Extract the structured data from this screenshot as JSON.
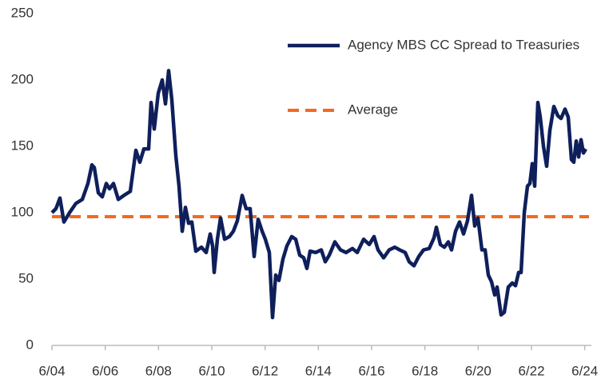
{
  "chart_data": {
    "type": "line",
    "x": [
      2004.5,
      2004.65,
      2004.8,
      2004.95,
      2005.16,
      2005.4,
      2005.64,
      2005.85,
      2006.0,
      2006.09,
      2006.24,
      2006.39,
      2006.54,
      2006.66,
      2006.81,
      2006.99,
      2007.2,
      2007.44,
      2007.65,
      2007.8,
      2007.95,
      2008.13,
      2008.22,
      2008.34,
      2008.49,
      2008.64,
      2008.76,
      2008.88,
      2009.0,
      2009.15,
      2009.27,
      2009.39,
      2009.51,
      2009.63,
      2009.75,
      2009.9,
      2010.11,
      2010.29,
      2010.44,
      2010.53,
      2010.59,
      2010.71,
      2010.83,
      2010.98,
      2011.16,
      2011.31,
      2011.46,
      2011.64,
      2011.79,
      2011.94,
      2012.09,
      2012.24,
      2012.39,
      2012.51,
      2012.66,
      2012.78,
      2012.9,
      2013.02,
      2013.17,
      2013.32,
      2013.5,
      2013.65,
      2013.8,
      2013.95,
      2014.07,
      2014.19,
      2014.4,
      2014.61,
      2014.76,
      2014.91,
      2015.12,
      2015.33,
      2015.54,
      2015.78,
      2015.96,
      2016.2,
      2016.41,
      2016.59,
      2016.74,
      2016.95,
      2017.16,
      2017.37,
      2017.55,
      2017.76,
      2017.91,
      2018.09,
      2018.27,
      2018.45,
      2018.66,
      2018.84,
      2018.93,
      2019.08,
      2019.23,
      2019.38,
      2019.5,
      2019.65,
      2019.8,
      2019.95,
      2020.1,
      2020.25,
      2020.37,
      2020.49,
      2020.64,
      2020.76,
      2020.88,
      2021.0,
      2021.12,
      2021.21,
      2021.36,
      2021.48,
      2021.63,
      2021.78,
      2021.9,
      2022.02,
      2022.11,
      2022.23,
      2022.35,
      2022.44,
      2022.53,
      2022.62,
      2022.74,
      2022.83,
      2022.95,
      2023.07,
      2023.19,
      2023.34,
      2023.49,
      2023.61,
      2023.76,
      2023.88,
      2024.0,
      2024.09,
      2024.18,
      2024.27,
      2024.36,
      2024.45,
      2024.54
    ],
    "series": [
      {
        "name": "Agency MBS CC Spread to Treasuries",
        "color": "#0e1f5b",
        "values": [
          100,
          103,
          111,
          93,
          100,
          107,
          110,
          122,
          136,
          134,
          115,
          112,
          122,
          118,
          122,
          110,
          113,
          116,
          147,
          138,
          148,
          148,
          183,
          163,
          190,
          200,
          182,
          207,
          185,
          143,
          120,
          86,
          104,
          92,
          93,
          71,
          74,
          70,
          84,
          75,
          55,
          80,
          96,
          80,
          82,
          86,
          94,
          113,
          103,
          103,
          67,
          95,
          86,
          80,
          70,
          21,
          53,
          49,
          65,
          75,
          82,
          80,
          68,
          66,
          58,
          71,
          70,
          72,
          63,
          68,
          78,
          72,
          70,
          73,
          70,
          80,
          76,
          82,
          72,
          66,
          72,
          74,
          72,
          70,
          63,
          60,
          67,
          72,
          73,
          81,
          89,
          76,
          74,
          78,
          72,
          86,
          93,
          84,
          94,
          113,
          90,
          96,
          72,
          72,
          53,
          48,
          38,
          44,
          23,
          25,
          44,
          47,
          45,
          55,
          55,
          100,
          120,
          122,
          137,
          120,
          183,
          172,
          150,
          135,
          162,
          180,
          173,
          171,
          178,
          172,
          140,
          138,
          154,
          142,
          155,
          145,
          148
        ]
      }
    ],
    "reference_lines": [
      {
        "name": "Average",
        "value": 97,
        "color": "#f26a21",
        "dashed": true
      }
    ],
    "xlim": [
      2004.5,
      2024.54
    ],
    "xticks": [
      {
        "value": 2004.5,
        "label": "6/04"
      },
      {
        "value": 2006.5,
        "label": "6/06"
      },
      {
        "value": 2008.5,
        "label": "6/08"
      },
      {
        "value": 2010.5,
        "label": "6/10"
      },
      {
        "value": 2012.5,
        "label": "6/12"
      },
      {
        "value": 2014.5,
        "label": "6/14"
      },
      {
        "value": 2016.5,
        "label": "6/16"
      },
      {
        "value": 2018.5,
        "label": "6/18"
      },
      {
        "value": 2020.5,
        "label": "6/20"
      },
      {
        "value": 2022.5,
        "label": "6/22"
      },
      {
        "value": 2024.5,
        "label": "6/24"
      }
    ],
    "ylim": [
      0,
      250
    ],
    "yticks": [
      0,
      50,
      100,
      150,
      200,
      250
    ],
    "grid": false,
    "legend": "top-right"
  }
}
